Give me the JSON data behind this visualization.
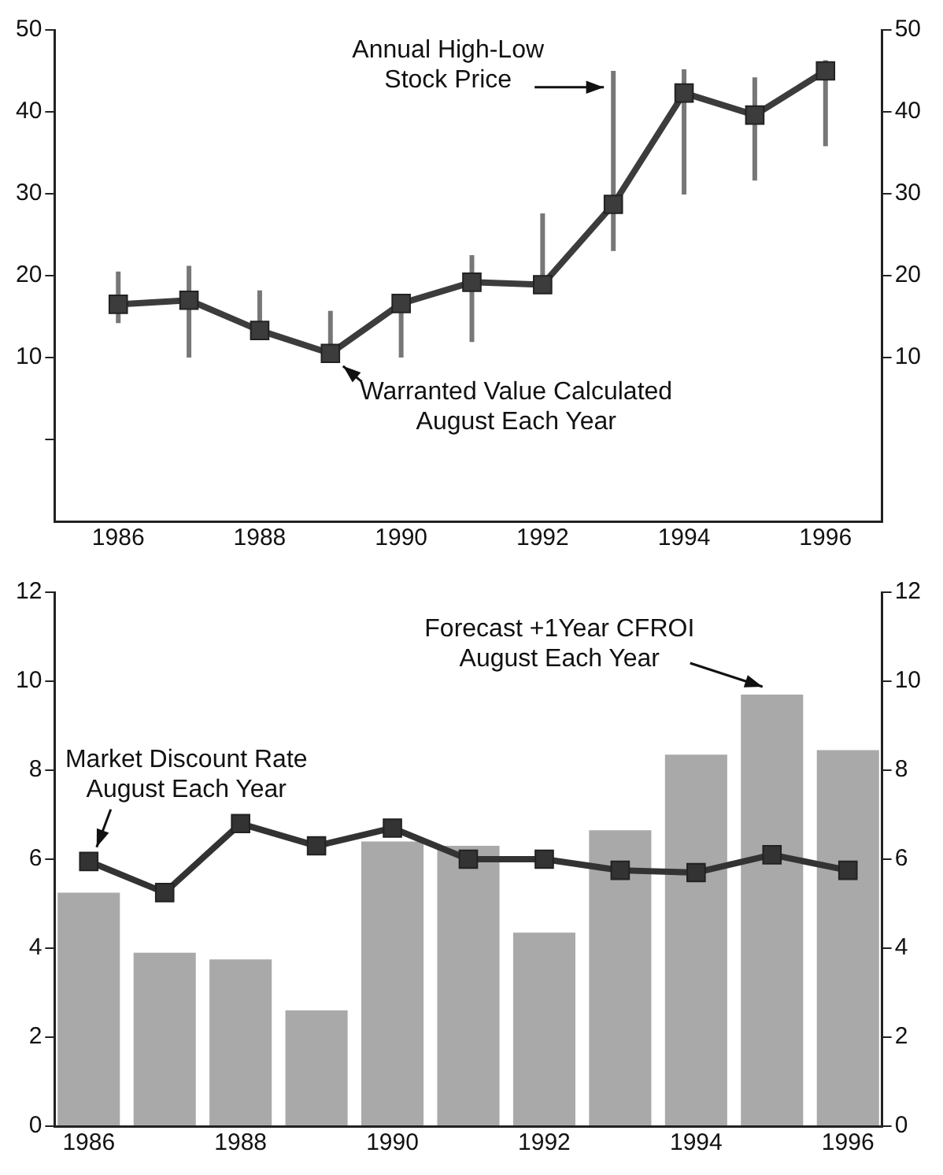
{
  "chart_data": [
    {
      "type": "line",
      "x": [
        1986,
        1987,
        1988,
        1989,
        1990,
        1991,
        1992,
        1993,
        1994,
        1995,
        1996
      ],
      "xlim": [
        1985.1,
        1996.8
      ],
      "xticks": [
        1986,
        1988,
        1990,
        1992,
        1994,
        1996
      ],
      "series": [
        {
          "color": "#3c3c3c",
          "values": [
            16.5,
            17,
            13.3,
            10.5,
            16.6,
            19.2,
            18.9,
            28.7,
            42.3,
            39.6,
            45
          ],
          "errors": [
            [
              14.2,
              20.5
            ],
            [
              10,
              21.2
            ],
            [
              12.3,
              18.2
            ],
            [
              10,
              15.7
            ],
            [
              10,
              17.5
            ],
            [
              11.9,
              22.5
            ],
            [
              18.4,
              27.6
            ],
            [
              23,
              45
            ],
            [
              29.9,
              45.2
            ],
            [
              31.6,
              44.2
            ],
            [
              35.8,
              46.3
            ]
          ]
        }
      ],
      "ylim": [
        -10,
        50
      ],
      "yticks": [
        {
          "value": 0,
          "label": null
        },
        10,
        20,
        30,
        40,
        50
      ],
      "y2lim": [
        -10,
        50
      ],
      "y2ticks": [
        10,
        20,
        30,
        40,
        50
      ],
      "marker": "square",
      "annotations": [
        {
          "text": "Annual High-Low\nStock Price",
          "x": 1993,
          "y": 43
        },
        {
          "text": "Warranted Value Calculated\nAugust Each Year",
          "x": 1989,
          "y": 10.5
        }
      ]
    },
    {
      "type": "bar",
      "x": [
        1986,
        1987,
        1988,
        1989,
        1990,
        1991,
        1992,
        1993,
        1994,
        1995,
        1996
      ],
      "xlim": [
        1985.55,
        1996.45
      ],
      "xticks": [
        1986,
        1988,
        1990,
        1992,
        1994,
        1996
      ],
      "series": [
        {
          "color": "#a9a9a9",
          "values": [
            5.25,
            3.9,
            3.75,
            2.6,
            6.4,
            6.3,
            4.35,
            6.65,
            8.35,
            9.7,
            8.45
          ]
        },
        {
          "type": "line",
          "color": "#333333",
          "values": [
            5.95,
            5.25,
            6.8,
            6.3,
            6.7,
            6,
            6,
            5.75,
            5.7,
            6.1,
            5.75
          ]
        }
      ],
      "ylim": [
        0,
        12
      ],
      "yticks": [
        0,
        2,
        4,
        6,
        8,
        10,
        12
      ],
      "y2lim": [
        0,
        12
      ],
      "y2ticks": [
        0,
        2,
        4,
        6,
        8,
        10,
        12
      ],
      "marker": "square",
      "annotations": [
        {
          "text": "Market Discount Rate\nAugust Each Year",
          "x": 1986,
          "y": 5.95
        },
        {
          "text": "Forecast +1Year CFROI\nAugust Each Year",
          "x": 1995,
          "y": 9.7
        }
      ]
    }
  ]
}
